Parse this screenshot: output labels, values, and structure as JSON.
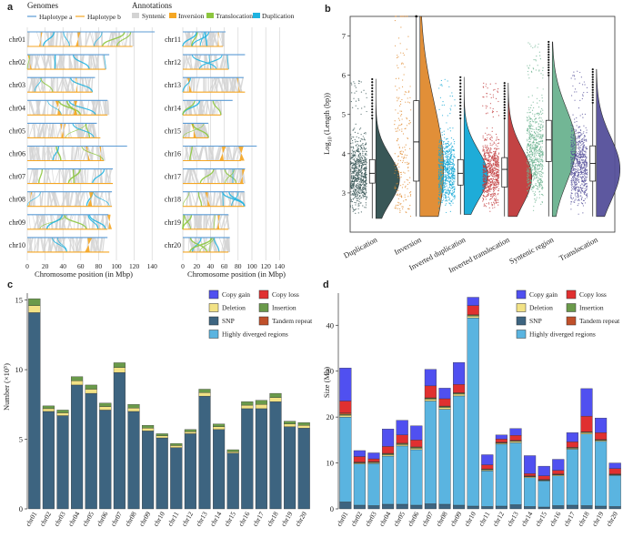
{
  "panel_labels": [
    "a",
    "b",
    "c",
    "d"
  ],
  "colors": {
    "hap_a": "#5b9bd5",
    "hap_b": "#f5a623",
    "syntenic": "#d3d3d3",
    "inversion": "#f5a623",
    "translocation": "#8dc63f",
    "duplication": "#1fb3e0",
    "copy_gain": "#5050f0",
    "copy_loss": "#e03030",
    "deletion": "#f2e285",
    "insertion": "#6a9a4a",
    "snp": "#3d6480",
    "tandem": "#c0502a",
    "hdr": "#5ab4e0",
    "b_dup": "#2f4f4f",
    "b_inv": "#e08a2e",
    "b_invdup": "#13a8d6",
    "b_invtrans": "#c0393b",
    "b_syn": "#6bb390",
    "b_trans": "#55509a"
  },
  "chart_data": [
    {
      "id": "a",
      "type": "synteny",
      "legend": {
        "genomes_title": "Genomes",
        "genomes": [
          "Haplotype a",
          "Haplotype b"
        ],
        "annotations_title": "Annotations",
        "annotations": [
          "Syntenic",
          "Inversion",
          "Translocation",
          "Duplication"
        ]
      },
      "xlabel": "Chromosome position (in Mbp)",
      "xticks": [
        0,
        20,
        40,
        60,
        80,
        100,
        120,
        140
      ],
      "left_chromosomes": [
        {
          "name": "chr01",
          "hap_a": 143,
          "hap_b": 118
        },
        {
          "name": "chr02",
          "hap_a": 92,
          "hap_b": 88
        },
        {
          "name": "chr03",
          "hap_a": 76,
          "hap_b": 73
        },
        {
          "name": "chr04",
          "hap_a": 90,
          "hap_b": 90
        },
        {
          "name": "chr05",
          "hap_a": 78,
          "hap_b": 82
        },
        {
          "name": "chr06",
          "hap_a": 112,
          "hap_b": 86
        },
        {
          "name": "chr07",
          "hap_a": 96,
          "hap_b": 96
        },
        {
          "name": "chr08",
          "hap_a": 95,
          "hap_b": 95
        },
        {
          "name": "chr09",
          "hap_a": 91,
          "hap_b": 90
        },
        {
          "name": "chr10",
          "hap_a": 90,
          "hap_b": 92
        }
      ],
      "right_chromosomes": [
        {
          "name": "chr11",
          "hap_a": 62,
          "hap_b": 58
        },
        {
          "name": "chr12",
          "hap_a": 90,
          "hap_b": 66
        },
        {
          "name": "chr13",
          "hap_a": 88,
          "hap_b": 90
        },
        {
          "name": "chr14",
          "hap_a": 72,
          "hap_b": 55
        },
        {
          "name": "chr15",
          "hap_a": 37,
          "hap_b": 37
        },
        {
          "name": "chr16",
          "hap_a": 107,
          "hap_b": 84
        },
        {
          "name": "chr17",
          "hap_a": 90,
          "hap_b": 88
        },
        {
          "name": "chr18",
          "hap_a": 89,
          "hap_b": 89
        },
        {
          "name": "chr19",
          "hap_a": 66,
          "hap_b": 66
        },
        {
          "name": "chr20",
          "hap_a": 68,
          "hap_b": 66
        }
      ]
    },
    {
      "id": "b",
      "type": "raincloud",
      "ylabel_main": "Log",
      "ylabel_sub": "10",
      "ylabel_rest": " (Length (bp))",
      "ylim": [
        2,
        7.5
      ],
      "yticks": [
        3,
        4,
        5,
        6,
        7
      ],
      "categories": [
        "Duplication",
        "Inversion",
        "Inverted duplication",
        "Inverted translocation",
        "Syntenic region",
        "Translocation"
      ],
      "stats": [
        {
          "min": 2.35,
          "q1": 3.25,
          "median": 3.5,
          "q3": 3.85,
          "max": 4.9,
          "outmax": 5.9,
          "peak": 3.35
        },
        {
          "min": 2.4,
          "q1": 3.3,
          "median": 4.3,
          "q3": 5.35,
          "max": 7.5,
          "outmax": 7.5,
          "peak": 3.6
        },
        {
          "min": 2.45,
          "q1": 3.2,
          "median": 3.5,
          "q3": 3.85,
          "max": 4.9,
          "outmax": 5.95,
          "peak": 3.45
        },
        {
          "min": 2.4,
          "q1": 3.15,
          "median": 3.6,
          "q3": 3.9,
          "max": 4.9,
          "outmax": 5.8,
          "peak": 3.4
        },
        {
          "min": 2.4,
          "q1": 3.8,
          "median": 4.35,
          "q3": 4.85,
          "max": 6.0,
          "outmax": 6.85,
          "peak": 4.2
        },
        {
          "min": 2.4,
          "q1": 3.3,
          "median": 3.75,
          "q3": 4.2,
          "max": 5.3,
          "outmax": 6.15,
          "peak": 3.6
        }
      ]
    },
    {
      "id": "c",
      "type": "bar",
      "stacked": true,
      "ylabel": "Number (×10⁵)",
      "ylim": [
        0,
        15.5
      ],
      "yticks": [
        0,
        5,
        10,
        15
      ],
      "categories": [
        "chr01",
        "chr02",
        "chr03",
        "chr04",
        "chr05",
        "chr06",
        "chr07",
        "chr08",
        "chr09",
        "chr10",
        "chr11",
        "chr12",
        "chr13",
        "chr14",
        "chr15",
        "chr16",
        "chr17",
        "chr18",
        "chr19",
        "chr20"
      ],
      "legend": [
        "Copy gain",
        "Copy loss",
        "Deletion",
        "Insertion",
        "SNP",
        "Tandem repeat",
        "Highly diverged regions"
      ],
      "series": [
        {
          "name": "SNP",
          "values": [
            14.1,
            7.0,
            6.7,
            8.9,
            8.3,
            7.1,
            9.8,
            7.0,
            5.6,
            5.1,
            4.4,
            5.4,
            8.1,
            5.7,
            4.0,
            7.2,
            7.2,
            7.7,
            5.9,
            5.8
          ]
        },
        {
          "name": "Deletion",
          "values": [
            0.5,
            0.2,
            0.2,
            0.3,
            0.3,
            0.25,
            0.35,
            0.25,
            0.2,
            0.15,
            0.15,
            0.15,
            0.25,
            0.2,
            0.1,
            0.25,
            0.3,
            0.3,
            0.2,
            0.2
          ]
        },
        {
          "name": "Insertion",
          "values": [
            0.5,
            0.2,
            0.2,
            0.3,
            0.3,
            0.25,
            0.35,
            0.25,
            0.2,
            0.15,
            0.15,
            0.15,
            0.25,
            0.2,
            0.15,
            0.25,
            0.3,
            0.3,
            0.2,
            0.2
          ]
        }
      ]
    },
    {
      "id": "d",
      "type": "bar",
      "stacked": true,
      "ylabel": "Size (Mb)",
      "ylim": [
        0,
        47
      ],
      "yticks": [
        0,
        10,
        20,
        30,
        40
      ],
      "categories": [
        "chr01",
        "chr02",
        "chr03",
        "chr04",
        "chr05",
        "chr06",
        "chr07",
        "chr08",
        "chr09",
        "chr10",
        "chr11",
        "chr12",
        "chr13",
        "chr14",
        "chr15",
        "chr16",
        "chr17",
        "chr18",
        "chr19",
        "chr20"
      ],
      "legend": [
        "Copy gain",
        "Copy loss",
        "Deletion",
        "Insertion",
        "SNP",
        "Tandem repeat",
        "Highly diverged regions"
      ],
      "series": [
        {
          "name": "SNP",
          "values": [
            1.5,
            0.8,
            0.7,
            1.0,
            1.0,
            0.8,
            1.1,
            1.0,
            0.8,
            0.6,
            0.5,
            0.6,
            0.9,
            0.5,
            0.4,
            0.7,
            0.8,
            0.7,
            0.6,
            0.5
          ]
        },
        {
          "name": "Highly diverged regions",
          "values": [
            18.5,
            9.0,
            9.2,
            10.5,
            12.7,
            12.1,
            22.4,
            20.7,
            23.8,
            41.0,
            7.8,
            13.5,
            13.5,
            6.3,
            5.7,
            6.5,
            12.2,
            15.6,
            14.1,
            6.8
          ]
        },
        {
          "name": "Deletion",
          "values": [
            0.4,
            0.2,
            0.2,
            0.3,
            0.3,
            0.3,
            0.4,
            0.4,
            0.4,
            0.4,
            0.2,
            0.2,
            0.3,
            0.2,
            0.1,
            0.2,
            0.2,
            0.3,
            0.2,
            0.1
          ]
        },
        {
          "name": "Insertion",
          "values": [
            0.2,
            0.1,
            0.1,
            0.2,
            0.2,
            0.2,
            0.2,
            0.2,
            0.2,
            0.2,
            0.1,
            0.1,
            0.1,
            0.1,
            0.1,
            0.1,
            0.1,
            0.1,
            0.1,
            0.1
          ]
        },
        {
          "name": "Tandem repeat",
          "values": [
            0.3,
            0.1,
            0.1,
            0.1,
            0.1,
            0.1,
            0.1,
            0.1,
            0.1,
            0.1,
            0.1,
            0.1,
            0.1,
            0.1,
            0.1,
            0.1,
            0.1,
            0.1,
            0.1,
            0.1
          ]
        },
        {
          "name": "Copy loss",
          "values": [
            2.6,
            1.2,
            0.6,
            1.5,
            1.8,
            1.5,
            2.6,
            1.6,
            1.8,
            2.0,
            0.9,
            0.7,
            1.1,
            0.5,
            0.8,
            0.8,
            1.2,
            3.4,
            1.5,
            1.2
          ]
        },
        {
          "name": "Copy gain",
          "values": [
            7.2,
            1.3,
            1.3,
            3.8,
            3.2,
            3.1,
            3.6,
            2.3,
            4.8,
            1.8,
            2.2,
            0.9,
            1.5,
            3.9,
            2.1,
            2.4,
            2.0,
            6.0,
            3.2,
            1.2
          ]
        }
      ]
    }
  ]
}
